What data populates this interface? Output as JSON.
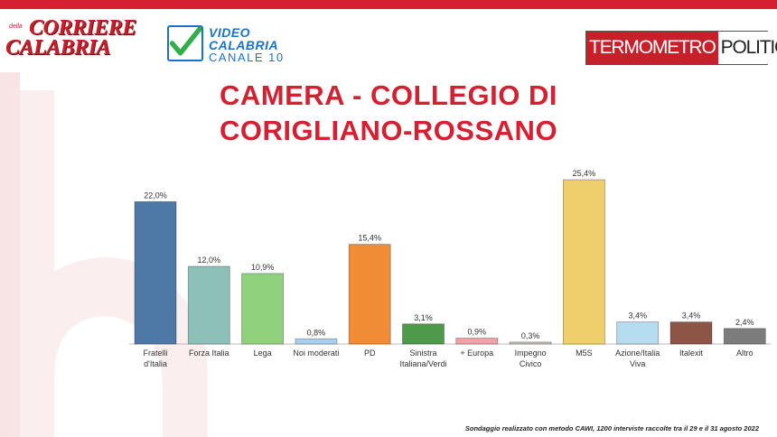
{
  "branding": {
    "corriere_line1": "CORRIERE",
    "corriere_della": "della",
    "corriere_line2": "CALABRIA",
    "videocalabria_line1": "VIDEO",
    "videocalabria_line2": "CALABRIA",
    "videocalabria_line3": "CANALE 10",
    "tp_left": "TERMOMETRO",
    "tp_right": "POLITICO"
  },
  "colors": {
    "accent": "#d42030",
    "bar_fratelli": "#4e79a7",
    "bar_forza": "#8cc0b9",
    "bar_lega": "#8fd17d",
    "bar_noi": "#a9cfee",
    "bar_pd": "#ef8c35",
    "bar_sinistra": "#4f9a4a",
    "bar_europa": "#f2a0a5",
    "bar_impegno": "#c8c0b6",
    "bar_m5s": "#efcf6c",
    "bar_azione": "#b5dcef",
    "bar_italexit": "#8d5546",
    "bar_altro": "#7c7c7c"
  },
  "chart_data": {
    "type": "bar",
    "title_line1": "CAMERA - COLLEGIO DI",
    "title_line2": "CORIGLIANO-ROSSANO",
    "categories": [
      [
        "Fratelli",
        "d'Italia"
      ],
      [
        "Forza Italia"
      ],
      [
        "Lega"
      ],
      [
        "Noi moderati"
      ],
      [
        "PD"
      ],
      [
        "Sinistra",
        "Italiana/Verdi"
      ],
      [
        "+ Europa"
      ],
      [
        "Impegno",
        "Civico"
      ],
      [
        "M5S"
      ],
      [
        "Azione/Italia",
        "Viva"
      ],
      [
        "Italexit"
      ],
      [
        "Altro"
      ]
    ],
    "values": [
      22.0,
      12.0,
      10.9,
      0.8,
      15.4,
      3.1,
      0.9,
      0.3,
      25.4,
      3.4,
      3.4,
      2.4
    ],
    "value_labels": [
      "22,0%",
      "12,0%",
      "10,9%",
      "0,8%",
      "15,4%",
      "3,1%",
      "0,9%",
      "0,3%",
      "25,4%",
      "3,4%",
      "3,4%",
      "2,4%"
    ],
    "ylim": [
      0,
      25.4
    ],
    "grid": false,
    "legend": "none"
  },
  "footnote": "Sondaggio realizzato con metodo CAWI, 1200 interviste raccolte tra il 29 e il 31 agosto 2022"
}
